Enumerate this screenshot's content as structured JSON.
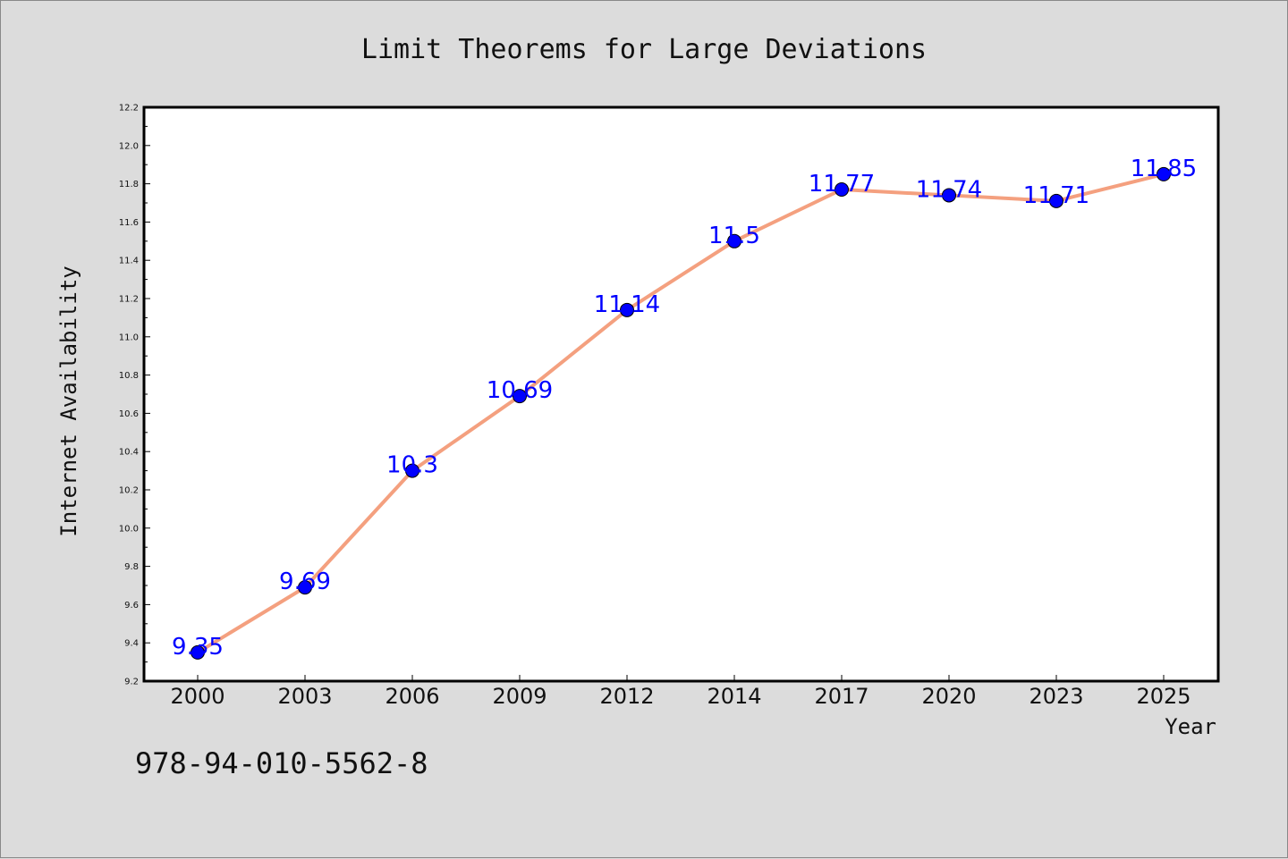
{
  "chart_data": {
    "type": "line",
    "title": "Limit Theorems for Large Deviations",
    "xlabel": "Year",
    "ylabel": "Internet Availability",
    "categories": [
      "2000",
      "2003",
      "2006",
      "2009",
      "2012",
      "2014",
      "2017",
      "2020",
      "2023",
      "2025"
    ],
    "series": [
      {
        "values": [
          9.35,
          9.69,
          10.3,
          10.69,
          11.14,
          11.5,
          11.77,
          11.74,
          11.71,
          11.85
        ],
        "data_labels": [
          "9.35",
          "9.69",
          "10.3",
          "10.69",
          "11.14",
          "11.5",
          "11.77",
          "11.74",
          "11.71",
          "11.85"
        ],
        "line_color": "#f4a07f",
        "marker_color": "#0000ff"
      }
    ],
    "ylim": [
      9.2,
      12.2
    ],
    "yticks": [
      "9.2",
      "9.4",
      "9.6",
      "9.8",
      "10.0",
      "10.2",
      "10.4",
      "10.6",
      "10.8",
      "11.0",
      "11.2",
      "11.4",
      "11.6",
      "11.8",
      "12.0",
      "12.2"
    ],
    "grid": false,
    "legend": "none"
  },
  "footer": {
    "isbn": "978-94-010-5562-8"
  },
  "colors": {
    "background": "#dcdcdc",
    "plot_background": "#ffffff",
    "label_color": "#0000ff"
  }
}
